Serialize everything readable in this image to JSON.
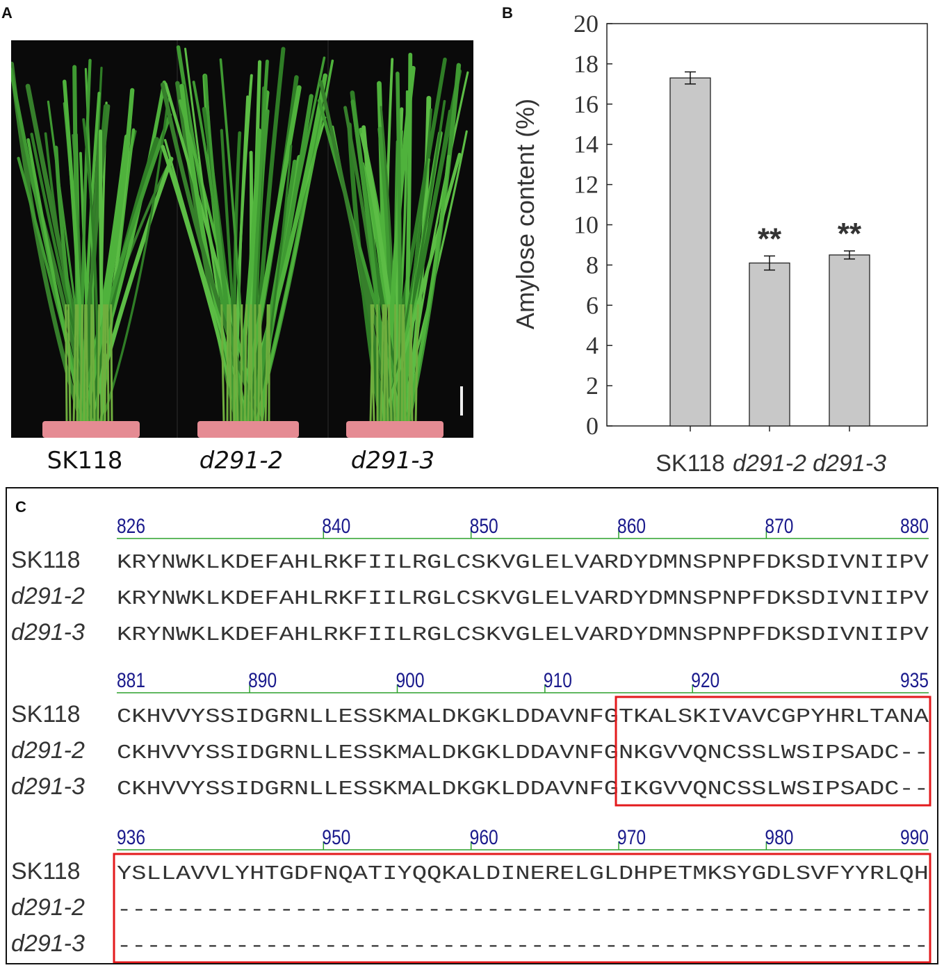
{
  "panels": {
    "a": {
      "letter": "A",
      "plant_labels": [
        "SK118",
        "d291-2",
        "d291-3"
      ]
    },
    "b": {
      "letter": "B"
    },
    "c": {
      "letter": "C"
    }
  },
  "chart_data": {
    "type": "bar",
    "categories": [
      "SK118",
      "d291-2",
      "d291-3"
    ],
    "values": [
      17.3,
      8.1,
      8.5
    ],
    "errors": [
      0.3,
      0.35,
      0.2
    ],
    "annotations": [
      "",
      "**",
      "**"
    ],
    "ylabel": "Amylose content (%)",
    "xlabel": "",
    "ylim": [
      0,
      20
    ],
    "yticks": [
      0,
      2,
      4,
      6,
      8,
      10,
      12,
      14,
      16,
      18,
      20
    ],
    "bar_color": "#c8c8c8",
    "grid": false
  },
  "alignment": {
    "blocks": [
      {
        "start": 826,
        "ticks": [
          "826",
          "840",
          "850",
          "860",
          "870",
          "880"
        ],
        "rows": [
          {
            "name": "SK118",
            "seq": "KRYNWKLKDEFAHLRKFIILRGLCSKVGLELVARDYDMNSPNPFDKSDIVNIIPV"
          },
          {
            "name": "d291-2",
            "seq": "KRYNWKLKDEFAHLRKFIILRGLCSKVGLELVARDYDMNSPNPFDKSDIVNIIPV"
          },
          {
            "name": "d291-3",
            "seq": "KRYNWKLKDEFAHLRKFIILRGLCSKVGLELVARDYDMNSPNPFDKSDIVNIIPV"
          }
        ]
      },
      {
        "start": 881,
        "ticks": [
          "881",
          "890",
          "900",
          "910",
          "920",
          "935"
        ],
        "rows": [
          {
            "name": "SK118",
            "seq": "CKHVVYSSIDGRNLLESSKMALDKGKLDDAVNFGTKALSKIVAVCGPYHRLTANA"
          },
          {
            "name": "d291-2",
            "seq": "CKHVVYSSIDGRNLLESSKMALDKGKLDDAVNFGNKGVVQNCSSLWSIPSADC--"
          },
          {
            "name": "d291-3",
            "seq": "CKHVVYSSIDGRNLLESSKMALDKGKLDDAVNFGIKGVVQNCSSLWSIPSADC--"
          }
        ]
      },
      {
        "start": 936,
        "ticks": [
          "936",
          "950",
          "960",
          "970",
          "980",
          "990"
        ],
        "rows": [
          {
            "name": "SK118",
            "seq": "YSLLAVVLYHTGDFNQATIYQQKALDINERELGLDHPETMKSYGDLSVFYYRLQH"
          },
          {
            "name": "d291-2",
            "seq": "-------------------------------------------------------"
          },
          {
            "name": "d291-3",
            "seq": "-------------------------------------------------------"
          }
        ]
      }
    ],
    "colors": {
      "ruler": "#2ca02c",
      "tick_text": "#1a1a8c",
      "highlight": "#e31a1c",
      "sequence": "#333333"
    }
  }
}
